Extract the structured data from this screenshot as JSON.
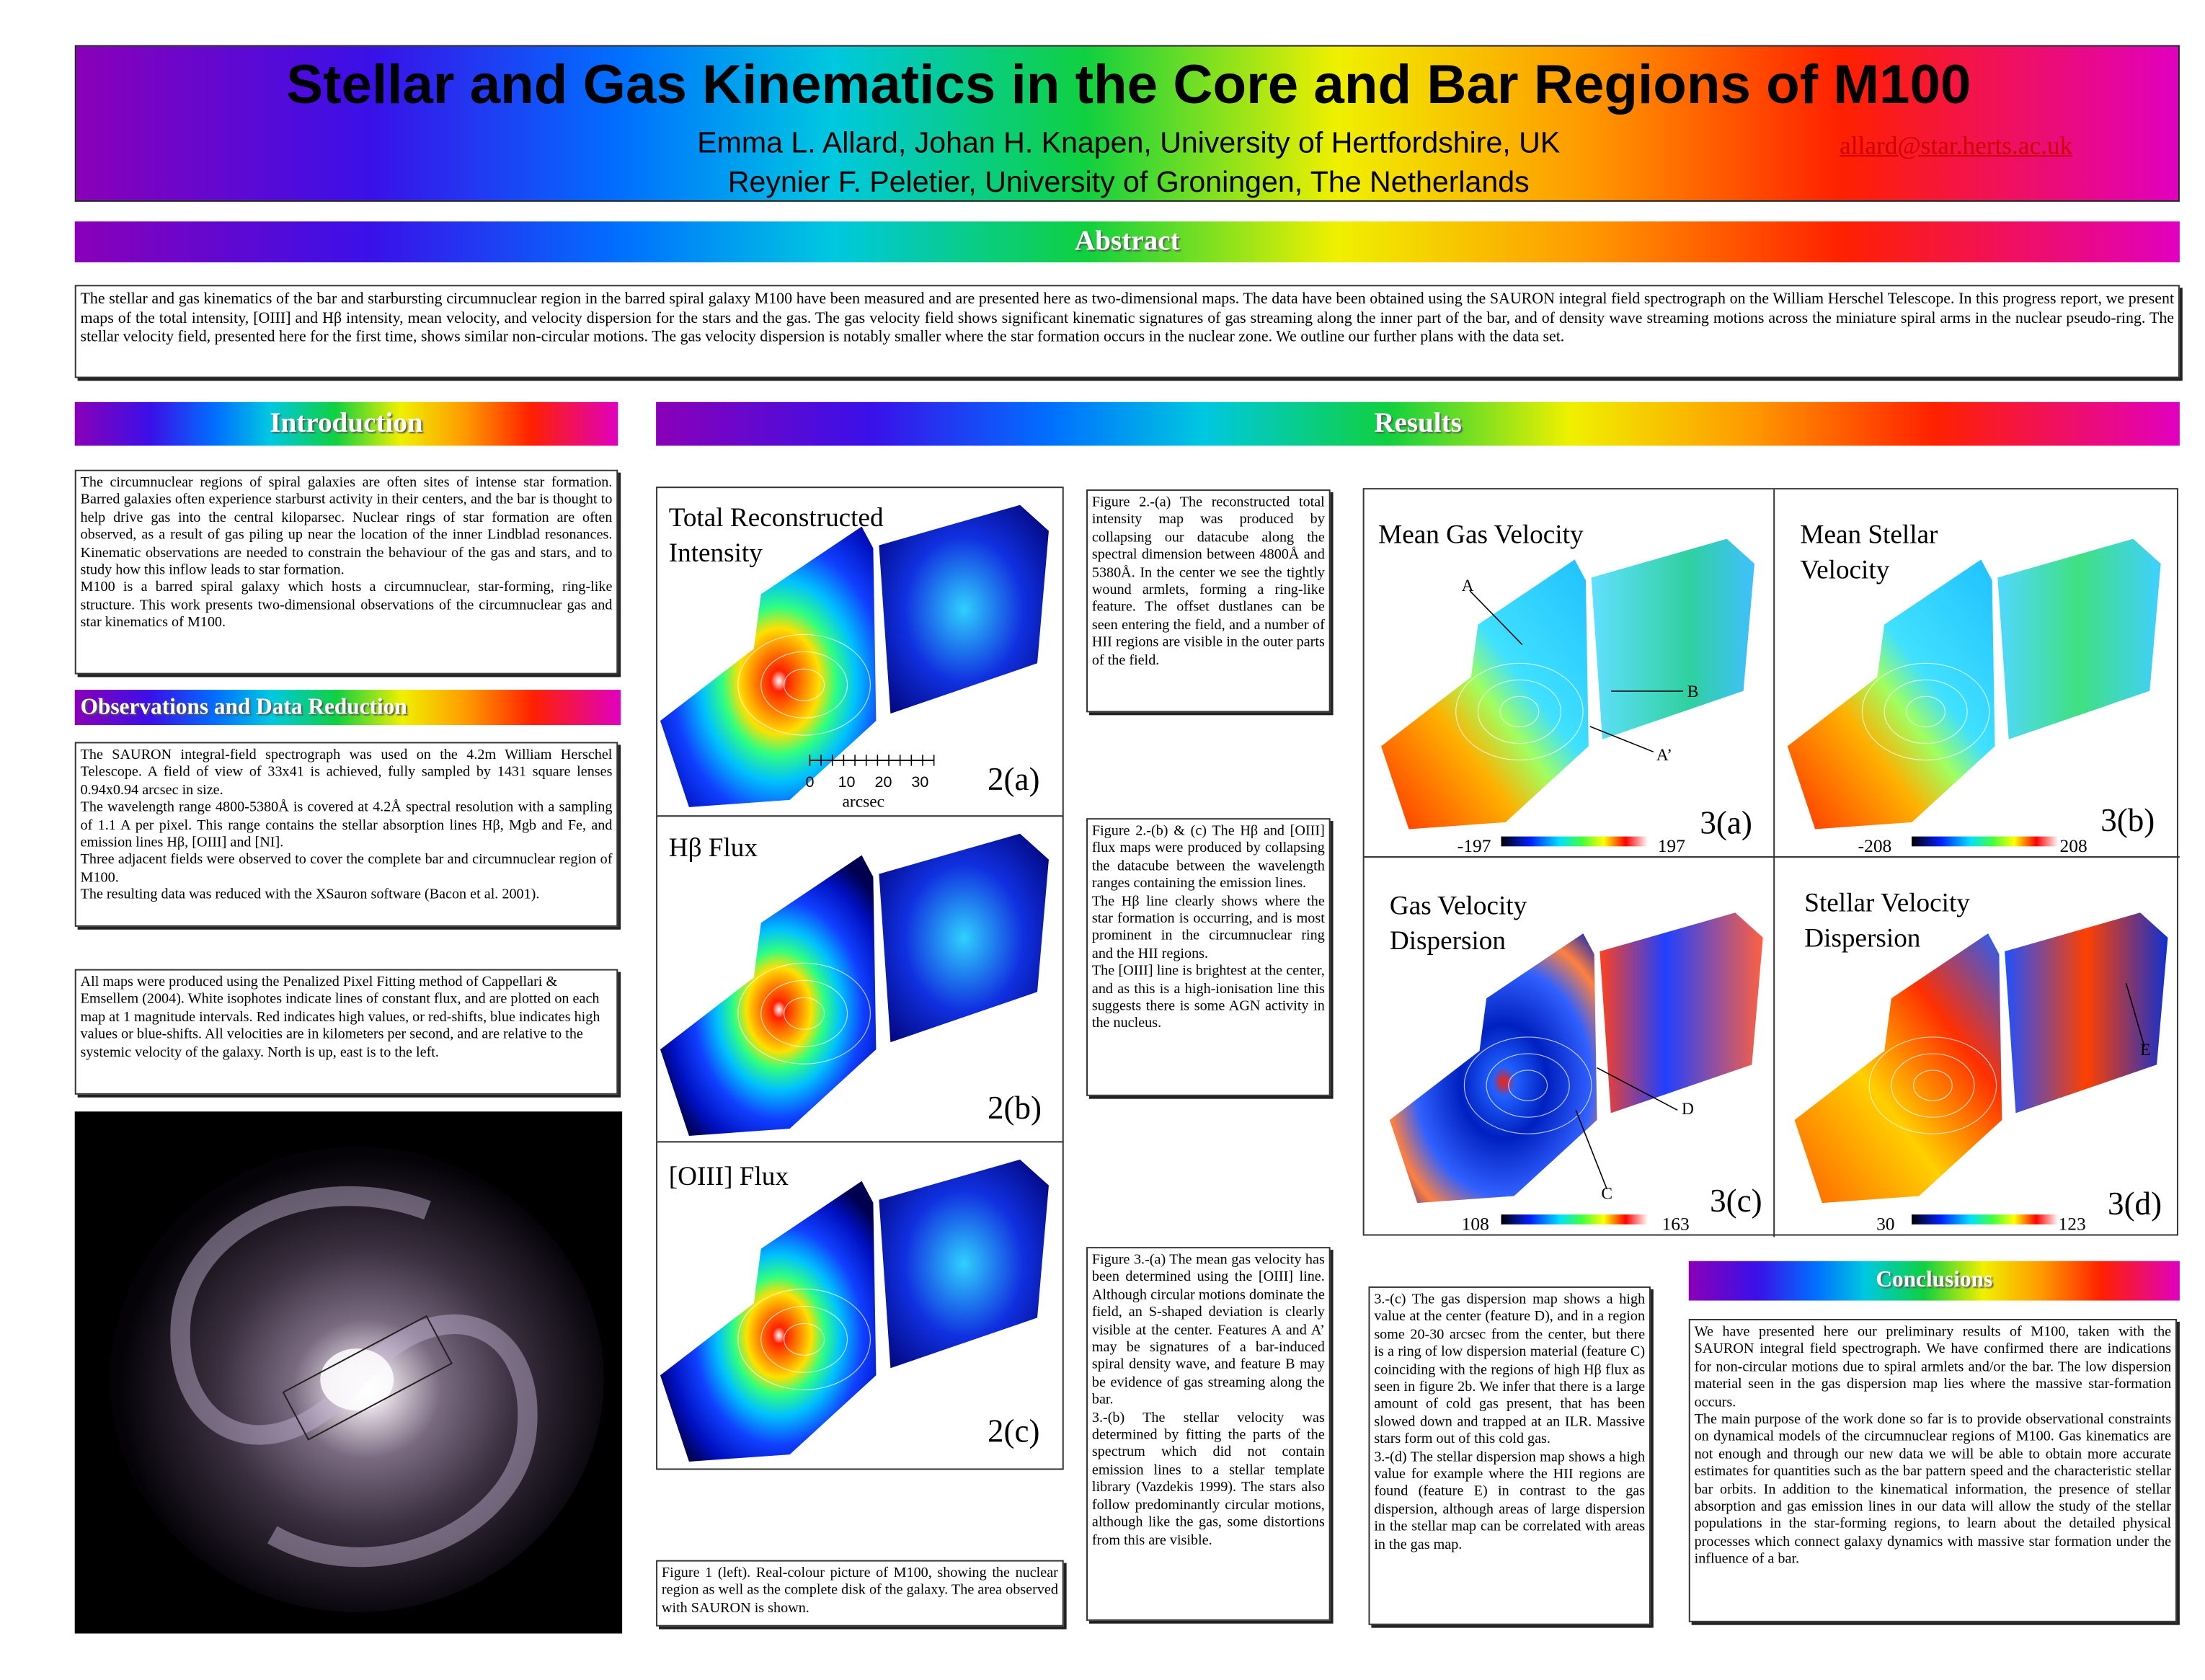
{
  "header": {
    "title": "Stellar and Gas Kinematics in the Core and Bar Regions of M100",
    "authors": [
      "Emma L. Allard, Johan H. Knapen, University of Hertfordshire, UK",
      "Reynier F. Peletier, University of Groningen, The Netherlands"
    ],
    "email": "allard@star.herts.ac.uk"
  },
  "abstract": {
    "heading": "Abstract",
    "text": "The stellar and gas kinematics of the bar and starbursting circumnuclear region in the barred spiral galaxy M100 have been measured and are presented here as two-dimensional maps. The data have been obtained using the SAURON integral field spectrograph on the William Herschel Telescope. In this progress report, we present maps of the total intensity, [OIII] and Hβ intensity, mean velocity, and velocity dispersion for the stars and the gas. The gas velocity field shows significant kinematic signatures of gas streaming along the inner part of the bar, and of density wave streaming motions across the miniature spiral arms in the nuclear pseudo-ring. The stellar velocity field, presented here for the first time, shows similar non-circular motions. The gas velocity dispersion is notably smaller where the star formation occurs in the nuclear zone. We outline our further plans with the data set."
  },
  "introduction": {
    "heading": "Introduction",
    "paragraphs": [
      "The circumnuclear regions of spiral galaxies are often sites of intense star formation. Barred galaxies often experience starburst activity in their centers, and the bar is thought to help drive gas into the central kiloparsec. Nuclear rings of star formation are often observed, as a result of gas piling up near the location of the inner Lindblad resonances. Kinematic observations are needed to constrain the behaviour of the gas and stars, and to study how this inflow leads to star formation.",
      "M100 is a barred spiral galaxy which hosts a circumnuclear, star-forming, ring-like structure. This work presents two-dimensional observations of the circumnuclear gas and star kinematics of M100."
    ]
  },
  "observations": {
    "heading": "Observations and Data Reduction",
    "paragraphs": [
      "The SAURON integral-field spectrograph was used on the 4.2m William Herschel Telescope. A field of view of 33x41 is achieved, fully sampled by 1431 square lenses 0.94x0.94 arcsec in size.",
      "The wavelength range 4800-5380Å is covered at 4.2Å  spectral resolution with a sampling of 1.1 A per pixel. This range contains the stellar absorption lines Hβ, Mgb and Fe, and emission lines Hβ, [OIII] and [NI].",
      "Three adjacent fields were observed to cover the complete bar and circumnuclear region of M100.",
      "The resulting data was reduced with the XSauron software (Bacon et al. 2001)."
    ]
  },
  "maps_note": {
    "text": "All maps were produced using the Penalized Pixel Fitting method of Cappellari & Emsellem (2004). White isophotes indicate lines of constant flux, and are plotted on each map at 1 magnitude intervals. Red indicates high values, or red-shifts, blue indicates high values or blue-shifts. All velocities are in kilometers per second, and are relative to the systemic velocity of the galaxy. North is up, east is to the left."
  },
  "results": {
    "heading": "Results"
  },
  "figure2": {
    "panels": [
      {
        "title": "Total Reconstructed Intensity",
        "label": "2(a)"
      },
      {
        "title": "Hβ Flux",
        "label": "2(b)"
      },
      {
        "title": "[OIII] Flux",
        "label": "2(c)"
      }
    ],
    "scale_bar": {
      "ticks": [
        "0",
        "10",
        "20",
        "30"
      ],
      "unit": "arcsec"
    }
  },
  "figure3": {
    "panels": [
      {
        "title": "Mean Gas Velocity",
        "label": "3(a)",
        "colorbar": [
          "-197",
          "197"
        ]
      },
      {
        "title": "Mean Stellar Velocity",
        "label": "3(b)",
        "colorbar": [
          "-208",
          "208"
        ]
      },
      {
        "title": "Gas Velocity Dispersion",
        "label": "3(c)",
        "colorbar": [
          "108",
          "163"
        ]
      },
      {
        "title": "Stellar Velocity Dispersion",
        "label": "3(d)",
        "colorbar": [
          "30",
          "123"
        ]
      }
    ],
    "features": [
      "A",
      "B",
      "A’",
      "C",
      "D",
      "E"
    ]
  },
  "captions": {
    "figure2a": "Figure 2.-(a) The reconstructed total intensity map was produced by collapsing our datacube along the spectral dimension between 4800Å and 5380Å. In the center we see the tightly wound armlets, forming a ring-like feature. The offset dustlanes can be seen entering the field, and a number of HII regions are visible in the outer parts of the field.",
    "figure2bc": [
      "Figure 2.-(b) & (c) The Hβ and [OIII] flux maps were produced by collapsing the datacube between the wavelength ranges containing the emission lines.",
      "The Hβ line clearly shows where the star formation is occurring, and is most prominent in the circumnuclear ring and the HII regions.",
      "The [OIII] line is brightest at the center, and as this is a high-ionisation line this suggests there is some AGN activity in the nucleus."
    ],
    "figure3ab": [
      "Figure 3.-(a) The mean gas velocity has been determined using the [OIII] line. Although circular motions dominate the field, an S-shaped deviation is clearly visible at the center. Features A and A’ may be signatures of a bar-induced spiral density wave, and feature B may be evidence of gas streaming along the bar.",
      "3.-(b) The stellar velocity was determined by fitting the parts of the spectrum which did not contain emission lines to a stellar template library (Vazdekis 1999). The stars also follow predominantly circular motions, although like the gas, some distortions from this are visible."
    ],
    "figure1": "Figure 1 (left). Real-colour picture of M100, showing the nuclear region as well as the complete disk of the galaxy. The area observed with SAURON is shown.",
    "figure3cd": [
      "3.-(c) The gas dispersion map shows a high value at the center (feature D), and in a region some 20-30 arcsec from the center, but there is a ring of low dispersion material (feature C) coinciding with the regions of high Hβ flux as seen in figure 2b. We infer that there is a large amount of cold gas present, that has been slowed down and trapped at an ILR. Massive stars form out of this cold gas.",
      "3.-(d) The stellar dispersion map shows a high value for example where the HII regions are found (feature E) in contrast to the gas dispersion, although areas of large dispersion in the stellar map can be correlated with areas in the gas map."
    ]
  },
  "conclusions": {
    "heading": "Conclusions",
    "paragraphs": [
      "We have presented here our preliminary results of M100, taken with the SAURON integral field spectrograph.  We have confirmed there are indications for non-circular motions due to spiral armlets and/or the bar. The low dispersion material seen in the gas dispersion map lies where the massive star-formation occurs.",
      "The main purpose of the work done so far is to provide observational constraints on dynamical models of the circumnuclear regions of M100. Gas kinematics are not enough and through our new data we will be able to obtain more accurate estimates for quantities such as the bar pattern speed and the characteristic stellar bar orbits. In addition to the kinematical information, the presence of stellar absorption and gas emission lines in our data will allow the study of the stellar populations in the star-forming regions, to learn about the detailed physical processes which connect galaxy dynamics with massive star formation under the influence of a bar."
    ]
  }
}
